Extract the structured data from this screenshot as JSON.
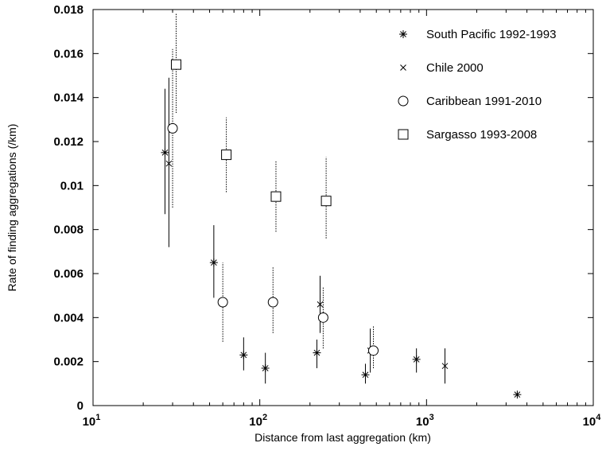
{
  "chart_data": {
    "type": "scatter",
    "title": "",
    "xlabel": "Distance from last aggregation (km)",
    "ylabel": "Rate of finding aggregations (/km)",
    "xscale": "log",
    "xlim": [
      10,
      10000
    ],
    "ylim": [
      0,
      0.018
    ],
    "x_tick_labels": [
      {
        "value": 10,
        "base": "10",
        "exp": "1"
      },
      {
        "value": 100,
        "base": "10",
        "exp": "2"
      },
      {
        "value": 1000,
        "base": "10",
        "exp": "3"
      },
      {
        "value": 10000,
        "base": "10",
        "exp": "4"
      }
    ],
    "y_ticks": [
      0,
      0.002,
      0.004,
      0.006,
      0.008,
      0.01,
      0.012,
      0.014,
      0.016,
      0.018
    ],
    "y_tick_labels": [
      "0",
      "0.002",
      "0.004",
      "0.006",
      "0.008",
      "0.01",
      "0.012",
      "0.014",
      "0.016",
      "0.018"
    ],
    "grid": false,
    "legend_position": "top-right",
    "series": [
      {
        "name": "South Pacific 1992-1993",
        "marker": "asterisk",
        "errorbar_style": "solid",
        "points": [
          {
            "x": 27,
            "y": 0.0115,
            "ylo": 0.0087,
            "yhi": 0.0144
          },
          {
            "x": 53,
            "y": 0.0065,
            "ylo": 0.0049,
            "yhi": 0.0082
          },
          {
            "x": 80,
            "y": 0.0023,
            "ylo": 0.0016,
            "yhi": 0.0031
          },
          {
            "x": 108,
            "y": 0.0017,
            "ylo": 0.001,
            "yhi": 0.0024
          },
          {
            "x": 220,
            "y": 0.0024,
            "ylo": 0.0017,
            "yhi": 0.003
          },
          {
            "x": 430,
            "y": 0.0014,
            "ylo": 0.001,
            "yhi": 0.0019
          },
          {
            "x": 870,
            "y": 0.0021,
            "ylo": 0.0015,
            "yhi": 0.0026
          },
          {
            "x": 3500,
            "y": 0.0005,
            "ylo": 0.0004,
            "yhi": 0.0006
          }
        ]
      },
      {
        "name": "Chile 2000",
        "marker": "cross",
        "errorbar_style": "solid",
        "points": [
          {
            "x": 28.5,
            "y": 0.011,
            "ylo": 0.0072,
            "yhi": 0.0149
          },
          {
            "x": 230,
            "y": 0.0046,
            "ylo": 0.0033,
            "yhi": 0.0059
          },
          {
            "x": 460,
            "y": 0.0025,
            "ylo": 0.0015,
            "yhi": 0.0035
          },
          {
            "x": 1290,
            "y": 0.0018,
            "ylo": 0.001,
            "yhi": 0.0026
          }
        ]
      },
      {
        "name": "Caribbean 1991-2010",
        "marker": "circle",
        "errorbar_style": "dotted",
        "points": [
          {
            "x": 30,
            "y": 0.0126,
            "ylo": 0.009,
            "yhi": 0.0162
          },
          {
            "x": 60,
            "y": 0.0047,
            "ylo": 0.0029,
            "yhi": 0.0065
          },
          {
            "x": 120,
            "y": 0.0047,
            "ylo": 0.0033,
            "yhi": 0.0063
          },
          {
            "x": 240,
            "y": 0.004,
            "ylo": 0.0026,
            "yhi": 0.0054
          },
          {
            "x": 480,
            "y": 0.0025,
            "ylo": 0.0017,
            "yhi": 0.0036
          }
        ]
      },
      {
        "name": "Sargasso 1993-2008",
        "marker": "square",
        "errorbar_style": "dotted",
        "points": [
          {
            "x": 31.5,
            "y": 0.0155,
            "ylo": 0.0133,
            "yhi": 0.0178
          },
          {
            "x": 63,
            "y": 0.0114,
            "ylo": 0.0097,
            "yhi": 0.0131
          },
          {
            "x": 125,
            "y": 0.0095,
            "ylo": 0.0079,
            "yhi": 0.0111
          },
          {
            "x": 250,
            "y": 0.0093,
            "ylo": 0.0076,
            "yhi": 0.0113
          }
        ]
      }
    ]
  }
}
